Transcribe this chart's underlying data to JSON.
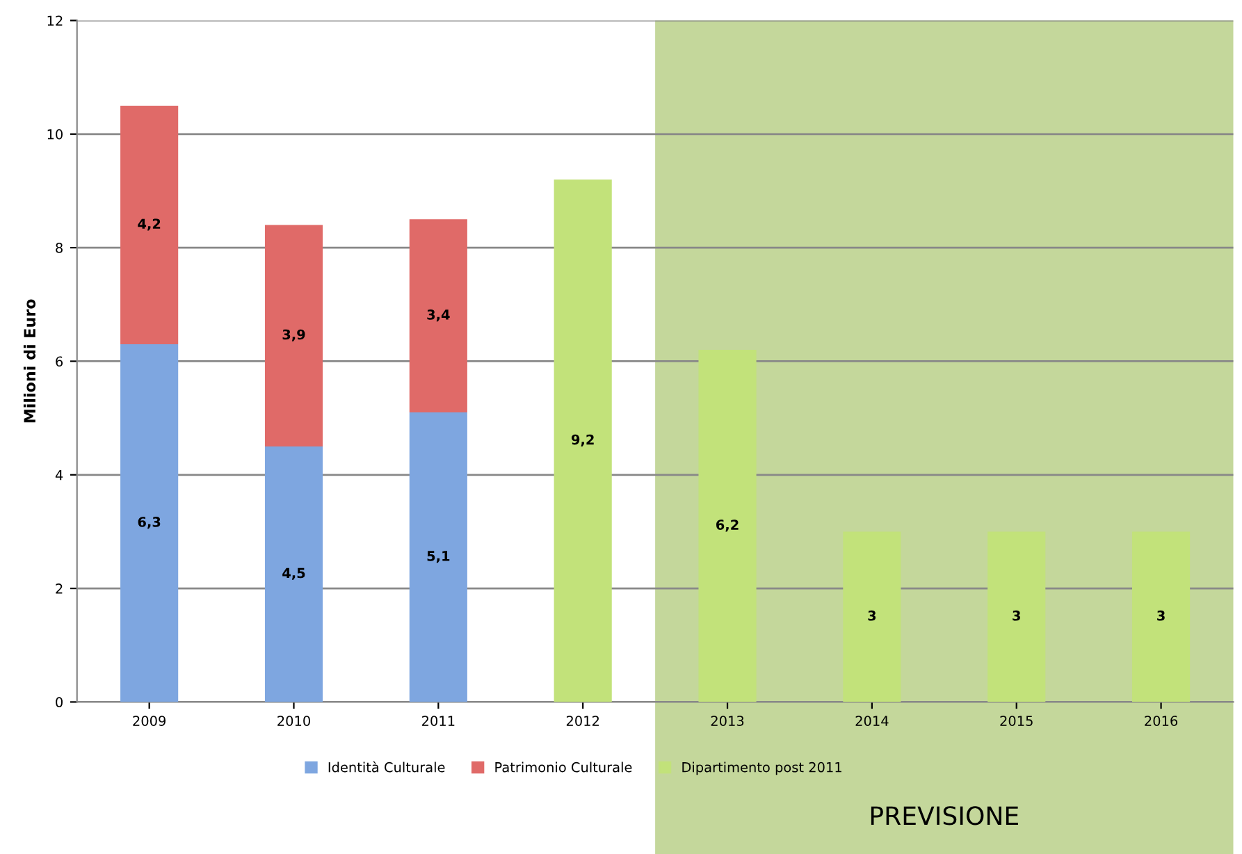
{
  "chart_data": {
    "type": "bar",
    "stacked": true,
    "ylabel": "Milioni di Euro",
    "categories": [
      "2009",
      "2010",
      "2011",
      "2012",
      "2013",
      "2014",
      "2015",
      "2016"
    ],
    "series": [
      {
        "name": "Identità Culturale",
        "color": "#7ea6e0",
        "values": [
          6.3,
          4.5,
          5.1,
          null,
          null,
          null,
          null,
          null
        ],
        "value_labels": [
          "6,3",
          "4,5",
          "5,1",
          null,
          null,
          null,
          null,
          null
        ]
      },
      {
        "name": "Patrimonio Culturale",
        "color": "#e06a68",
        "values": [
          4.2,
          3.9,
          3.4,
          null,
          null,
          null,
          null,
          null
        ],
        "value_labels": [
          "4,2",
          "3,9",
          "3,4",
          null,
          null,
          null,
          null,
          null
        ]
      },
      {
        "name": "Dipartimento post 2011",
        "color": "#c2e27a",
        "values": [
          null,
          null,
          null,
          9.2,
          6.2,
          3,
          3,
          3
        ],
        "value_labels": [
          null,
          null,
          null,
          "9,2",
          "6,2",
          "3",
          "3",
          "3"
        ]
      }
    ],
    "ylim": [
      0,
      12
    ],
    "yticks": [
      0,
      2,
      4,
      6,
      8,
      10,
      12
    ],
    "grid": "y",
    "legend": "bottom",
    "bands": [
      {
        "axis": "x",
        "from": "2013",
        "to": "2016",
        "label": "PREVISIONE",
        "color": "#c4d79b"
      }
    ]
  }
}
